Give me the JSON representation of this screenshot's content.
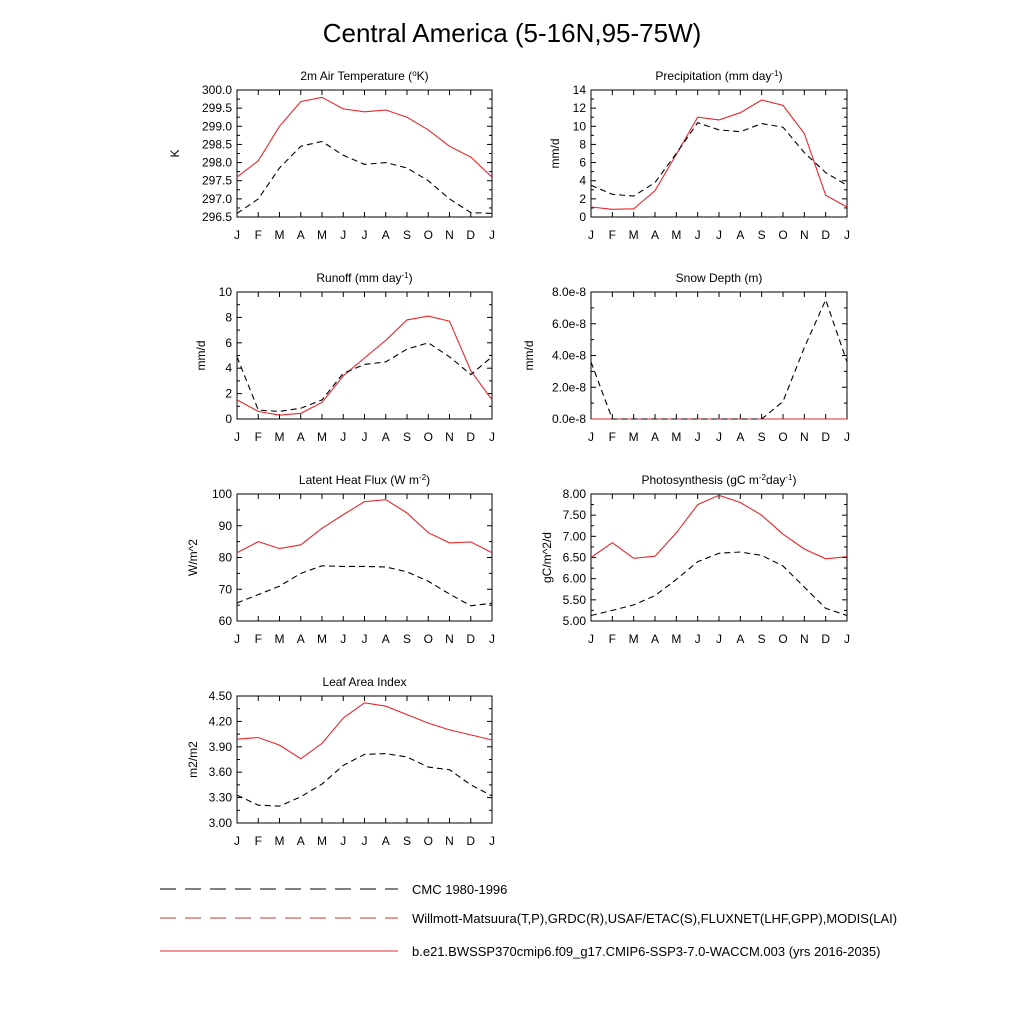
{
  "title": "Central America (5-16N,95-75W)",
  "legend": {
    "items": [
      {
        "label": "CMC 1980-1996",
        "style": "dash",
        "color": "#000000"
      },
      {
        "label": "Willmott-Matsuura(T,P),GRDC(R),USAF/ETAC(S),FLUXNET(LHF,GPP),MODIS(LAI)",
        "style": "dash",
        "color": "#cc3333"
      },
      {
        "label": "b.e21.BWSSP370cmip6.f09_g17.CMIP6-SSP3-7.0-WACCM.003 (yrs 2016-2035)",
        "style": "solid",
        "color": "#e8262c"
      }
    ]
  },
  "colors": {
    "model": "#e8262c",
    "obs": "#000000"
  },
  "chart_data": [
    {
      "type": "line",
      "title": "2m Air Temperature (",
      "title_sup": "o",
      "title_after": "K)",
      "ylabel": "K",
      "x": [
        "J",
        "F",
        "M",
        "A",
        "M",
        "J",
        "J",
        "A",
        "S",
        "O",
        "N",
        "D",
        "J"
      ],
      "ylim": [
        296.5,
        300.0
      ],
      "yticks": [
        296.5,
        297.0,
        297.5,
        298.0,
        298.5,
        299.0,
        299.5,
        300.0
      ],
      "tick_labels": [
        "296.5",
        "297.0",
        "297.5",
        "298.0",
        "298.5",
        "299.0",
        "299.5",
        "300.0"
      ],
      "series": [
        {
          "style": "solid",
          "values": [
            297.6,
            298.05,
            299.0,
            299.68,
            299.8,
            299.48,
            299.4,
            299.45,
            299.25,
            298.9,
            298.45,
            298.15,
            297.6
          ]
        },
        {
          "style": "dash",
          "values": [
            296.6,
            297.0,
            297.85,
            298.45,
            298.58,
            298.2,
            297.95,
            298.0,
            297.85,
            297.5,
            297.0,
            296.62,
            296.6
          ]
        }
      ]
    },
    {
      "type": "line",
      "title": "Precipitation (mm day",
      "title_sup": "-1",
      "title_after": ")",
      "ylabel": "mm/d",
      "x": [
        "J",
        "F",
        "M",
        "A",
        "M",
        "J",
        "J",
        "A",
        "S",
        "O",
        "N",
        "D",
        "J"
      ],
      "ylim": [
        0,
        14
      ],
      "yticks": [
        0,
        2,
        4,
        6,
        8,
        10,
        12,
        14
      ],
      "tick_labels": [
        "0",
        "2",
        "4",
        "6",
        "8",
        "10",
        "12",
        "14"
      ],
      "series": [
        {
          "style": "solid",
          "values": [
            1.1,
            0.85,
            0.9,
            2.9,
            6.9,
            11.0,
            10.7,
            11.5,
            12.9,
            12.3,
            9.2,
            2.4,
            1.1
          ]
        },
        {
          "style": "dash",
          "values": [
            3.5,
            2.5,
            2.3,
            3.8,
            7.0,
            10.4,
            9.6,
            9.4,
            10.3,
            9.9,
            7.1,
            4.9,
            3.5
          ]
        }
      ]
    },
    {
      "type": "line",
      "title": "Runoff (mm day",
      "title_sup": "-1",
      "title_after": ")",
      "ylabel": "mm/d",
      "x": [
        "J",
        "F",
        "M",
        "A",
        "M",
        "J",
        "J",
        "A",
        "S",
        "O",
        "N",
        "D",
        "J"
      ],
      "ylim": [
        0,
        10
      ],
      "yticks": [
        0,
        2,
        4,
        6,
        8,
        10
      ],
      "tick_labels": [
        "0",
        "2",
        "4",
        "6",
        "8",
        "10"
      ],
      "series": [
        {
          "style": "solid",
          "values": [
            1.5,
            0.6,
            0.3,
            0.45,
            1.3,
            3.4,
            4.8,
            6.2,
            7.8,
            8.1,
            7.7,
            3.8,
            1.5
          ]
        },
        {
          "style": "dash",
          "values": [
            4.9,
            0.7,
            0.6,
            0.85,
            1.5,
            3.6,
            4.3,
            4.5,
            5.5,
            6.0,
            4.9,
            3.5,
            4.9
          ]
        }
      ]
    },
    {
      "type": "line",
      "title": "Snow Depth (m)",
      "title_sup": "",
      "title_after": "",
      "ylabel": "mm/d",
      "x": [
        "J",
        "F",
        "M",
        "A",
        "M",
        "J",
        "J",
        "A",
        "S",
        "O",
        "N",
        "D",
        "J"
      ],
      "ylim": [
        0,
        8e-08
      ],
      "yticks": [
        0,
        2e-08,
        4e-08,
        6e-08,
        8e-08
      ],
      "tick_labels": [
        "0.0e-8",
        "2.0e-8",
        "4.0e-8",
        "6.0e-8",
        "8.0e-8"
      ],
      "series": [
        {
          "style": "solid",
          "values": [
            0,
            0,
            0,
            0,
            0,
            0,
            0,
            0,
            0,
            0,
            0,
            0,
            0
          ]
        },
        {
          "style": "dash",
          "values": [
            3.6e-08,
            0,
            0,
            0,
            0,
            0,
            0,
            0,
            0,
            1.1e-08,
            4.5e-08,
            7.5e-08,
            3.6e-08
          ]
        }
      ]
    },
    {
      "type": "line",
      "title": "Latent Heat Flux (W m",
      "title_sup": "-2",
      "title_after": ")",
      "ylabel": "W/m^2",
      "x": [
        "J",
        "F",
        "M",
        "A",
        "M",
        "J",
        "J",
        "A",
        "S",
        "O",
        "N",
        "D",
        "J"
      ],
      "ylim": [
        60,
        100
      ],
      "yticks": [
        60,
        70,
        80,
        90,
        100
      ],
      "tick_labels": [
        "60",
        "70",
        "80",
        "90",
        "100"
      ],
      "series": [
        {
          "style": "solid",
          "values": [
            81.5,
            85.0,
            82.8,
            84.0,
            89.2,
            93.5,
            97.6,
            98.2,
            94.0,
            87.8,
            84.6,
            84.9,
            81.5
          ]
        },
        {
          "style": "dash",
          "values": [
            65.7,
            68.3,
            71.0,
            75.0,
            77.4,
            77.2,
            77.2,
            77.0,
            75.5,
            72.5,
            68.5,
            64.8,
            65.6
          ]
        }
      ]
    },
    {
      "type": "line",
      "title": "Photosynthesis (gC m",
      "title_sup": "-2",
      "title_after": "day",
      "title_sup2": "-1",
      "title_after2": ")",
      "ylabel": "gC/m^2/d",
      "x": [
        "J",
        "F",
        "M",
        "A",
        "M",
        "J",
        "J",
        "A",
        "S",
        "O",
        "N",
        "D",
        "J"
      ],
      "ylim": [
        5.0,
        8.0
      ],
      "yticks": [
        5.0,
        5.5,
        6.0,
        6.5,
        7.0,
        7.5,
        8.0
      ],
      "tick_labels": [
        "5.00",
        "5.50",
        "6.00",
        "6.50",
        "7.00",
        "7.50",
        "8.00"
      ],
      "series": [
        {
          "style": "solid",
          "values": [
            6.5,
            6.85,
            6.48,
            6.53,
            7.08,
            7.75,
            7.97,
            7.8,
            7.5,
            7.05,
            6.7,
            6.47,
            6.52
          ]
        },
        {
          "style": "dash",
          "values": [
            5.13,
            5.25,
            5.38,
            5.6,
            5.98,
            6.4,
            6.6,
            6.63,
            6.55,
            6.3,
            5.8,
            5.3,
            5.13
          ]
        }
      ]
    },
    {
      "type": "line",
      "title": "Leaf Area Index",
      "title_sup": "",
      "title_after": "",
      "ylabel": "m2/m2",
      "x": [
        "J",
        "F",
        "M",
        "A",
        "M",
        "J",
        "J",
        "A",
        "S",
        "O",
        "N",
        "D",
        "J"
      ],
      "ylim": [
        3.0,
        4.5
      ],
      "yticks": [
        3.0,
        3.3,
        3.6,
        3.9,
        4.2,
        4.5
      ],
      "tick_labels": [
        "3.00",
        "3.30",
        "3.60",
        "3.90",
        "4.20",
        "4.50"
      ],
      "series": [
        {
          "style": "solid",
          "values": [
            3.99,
            4.01,
            3.92,
            3.76,
            3.94,
            4.24,
            4.42,
            4.38,
            4.28,
            4.18,
            4.1,
            4.04,
            3.98
          ]
        },
        {
          "style": "dash",
          "values": [
            3.33,
            3.21,
            3.2,
            3.31,
            3.46,
            3.68,
            3.81,
            3.82,
            3.78,
            3.66,
            3.63,
            3.45,
            3.32
          ]
        }
      ]
    }
  ]
}
